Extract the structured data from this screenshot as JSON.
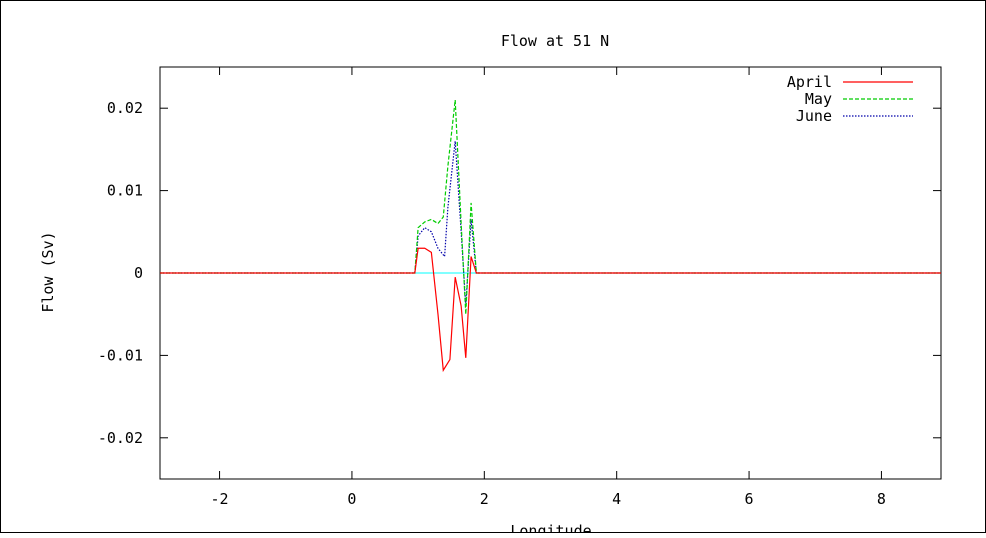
{
  "chart_data": {
    "type": "line",
    "title": "Flow at 51 N",
    "xlabel": "Longitude",
    "ylabel": "Flow (Sv)",
    "xlim": [
      -2.9,
      8.9
    ],
    "ylim": [
      -0.025,
      0.025
    ],
    "xticks": [
      -2,
      0,
      2,
      4,
      6,
      8
    ],
    "xtick_labels": [
      "-2",
      "0",
      "2",
      "4",
      "6",
      "8"
    ],
    "yticks": [
      -0.02,
      -0.01,
      0,
      0.01,
      0.02
    ],
    "ytick_labels": [
      "-0.02",
      "-0.01",
      "0",
      "0.01",
      "0.02"
    ],
    "grid": false,
    "legend_position": "top-right",
    "series": [
      {
        "name": "April",
        "color": "#ff0000",
        "dash": "solid",
        "x": [
          -2.9,
          0.95,
          1.0,
          1.1,
          1.2,
          1.3,
          1.38,
          1.48,
          1.56,
          1.65,
          1.72,
          1.8,
          1.88,
          8.9
        ],
        "y": [
          0,
          0,
          0.003,
          0.003,
          0.0025,
          -0.005,
          -0.0118,
          -0.0105,
          -0.0005,
          -0.004,
          -0.0103,
          0.002,
          0,
          0
        ]
      },
      {
        "name": "May",
        "color": "#00cc00",
        "dash": "dashed",
        "x": [
          -2.9,
          0.95,
          1.0,
          1.1,
          1.2,
          1.3,
          1.38,
          1.45,
          1.56,
          1.65,
          1.72,
          1.8,
          1.88,
          8.9
        ],
        "y": [
          0,
          0,
          0.0055,
          0.0062,
          0.0065,
          0.006,
          0.0068,
          0.013,
          0.021,
          0.006,
          -0.005,
          0.0085,
          0,
          0
        ]
      },
      {
        "name": "June",
        "color": "#0000aa",
        "dash": "dotted",
        "x": [
          -2.9,
          0.95,
          1.0,
          1.1,
          1.2,
          1.3,
          1.4,
          1.45,
          1.56,
          1.65,
          1.72,
          1.8,
          1.88,
          8.9
        ],
        "y": [
          0,
          0,
          0.0045,
          0.0055,
          0.005,
          0.003,
          0.002,
          0.008,
          0.016,
          0.005,
          -0.004,
          0.0065,
          0,
          0
        ]
      }
    ],
    "zero_line_color": "#00ffff"
  }
}
